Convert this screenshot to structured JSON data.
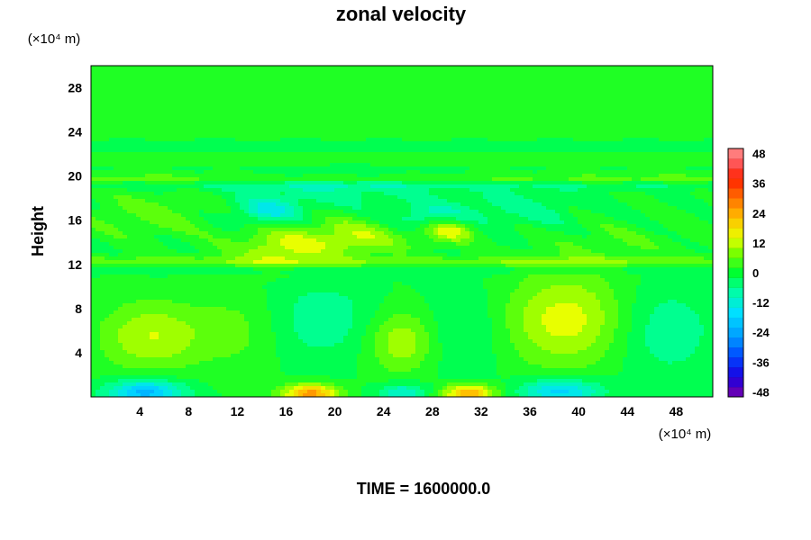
{
  "chart_data": {
    "type": "heatmap",
    "title": "zonal velocity",
    "ylabel": "Height",
    "x_units": "(×10⁴ m)",
    "y_units": "(×10⁴ m)",
    "xlim": [
      0,
      51
    ],
    "ylim": [
      0,
      30
    ],
    "x_ticks": [
      4,
      8,
      12,
      16,
      20,
      24,
      28,
      32,
      36,
      40,
      44,
      48
    ],
    "y_ticks": [
      4,
      8,
      12,
      16,
      20,
      24,
      28
    ],
    "colorbar": {
      "ticks": [
        48,
        36,
        24,
        12,
        0,
        -12,
        -24,
        -36,
        -48
      ],
      "range": [
        -50,
        50
      ],
      "interval": 4,
      "stops": [
        {
          "v": -50,
          "color": "#7b00a8"
        },
        {
          "v": -42,
          "color": "#1a00e0"
        },
        {
          "v": -34,
          "color": "#0044ff"
        },
        {
          "v": -26,
          "color": "#0099ff"
        },
        {
          "v": -16,
          "color": "#00e0ff"
        },
        {
          "v": -7,
          "color": "#00ffa0"
        },
        {
          "v": 0,
          "color": "#00ff30"
        },
        {
          "v": 8,
          "color": "#7aff00"
        },
        {
          "v": 14,
          "color": "#e8ff00"
        },
        {
          "v": 22,
          "color": "#ffc000"
        },
        {
          "v": 30,
          "color": "#ff7000"
        },
        {
          "v": 38,
          "color": "#ff2000"
        },
        {
          "v": 44,
          "color": "#ff5555"
        },
        {
          "v": 50,
          "color": "#ff9090"
        }
      ]
    },
    "field_features": [
      {
        "x": 4.5,
        "y": 0.4,
        "sx": 2.2,
        "sy": 0.8,
        "v": -22
      },
      {
        "x": 18,
        "y": 0.3,
        "sx": 1.6,
        "sy": 0.6,
        "v": 26
      },
      {
        "x": 25.5,
        "y": 0.4,
        "sx": 1.4,
        "sy": 0.6,
        "v": -12
      },
      {
        "x": 31,
        "y": 0.3,
        "sx": 1.5,
        "sy": 0.6,
        "v": 24
      },
      {
        "x": 38.5,
        "y": 0.5,
        "sx": 2.3,
        "sy": 0.8,
        "v": -18
      },
      {
        "x": 5,
        "y": 5.5,
        "sx": 3,
        "sy": 2.2,
        "v": 12
      },
      {
        "x": 12,
        "y": 6,
        "sx": 2.5,
        "sy": 2.5,
        "v": 5
      },
      {
        "x": 19,
        "y": 7,
        "sx": 3,
        "sy": 2.5,
        "v": -7
      },
      {
        "x": 25.5,
        "y": 5,
        "sx": 2,
        "sy": 2,
        "v": 11
      },
      {
        "x": 30.5,
        "y": 6,
        "sx": 2.2,
        "sy": 3,
        "v": -5
      },
      {
        "x": 39,
        "y": 7,
        "sx": 3.5,
        "sy": 3,
        "v": 14
      },
      {
        "x": 47,
        "y": 6,
        "sx": 3,
        "sy": 3,
        "v": -7
      },
      {
        "x": 16,
        "y": 13.5,
        "sx": 3,
        "sy": 1.2,
        "v": 12
      },
      {
        "x": 22,
        "y": 14.5,
        "sx": 3,
        "sy": 1.2,
        "v": 10
      },
      {
        "x": 29.5,
        "y": 15.2,
        "sx": 1.5,
        "sy": 0.8,
        "v": 16
      },
      {
        "x": 14.5,
        "y": 16.8,
        "sx": 2,
        "sy": 0.8,
        "v": -12
      },
      {
        "x": 28,
        "y": 16.2,
        "sx": 2.5,
        "sy": 0.8,
        "v": -10
      },
      {
        "x": 35,
        "y": 17,
        "sx": 4,
        "sy": 1.4,
        "v": -5
      },
      {
        "x": 20,
        "y": 18.8,
        "sx": 6,
        "sy": 1.2,
        "v": -6
      },
      {
        "x": 5,
        "y": 16.5,
        "sx": 4,
        "sy": 1.5,
        "v": 5
      },
      {
        "x": 44,
        "y": 14,
        "sx": 5,
        "sy": 1.5,
        "v": 3
      }
    ],
    "field_bands": [
      {
        "y": 12.2,
        "sy": 0.35,
        "v": 7
      },
      {
        "y": 11.6,
        "sy": 0.3,
        "v": -4
      },
      {
        "y": 19.7,
        "sy": 0.35,
        "v": 6
      },
      {
        "y": 19.2,
        "sy": 0.3,
        "v": -5
      },
      {
        "y": 21.6,
        "sy": 0.35,
        "v": 4
      },
      {
        "y": 22.4,
        "sy": 0.3,
        "v": -3
      },
      {
        "y": 25.5,
        "sy": 0.8,
        "v": 1.5
      }
    ]
  },
  "footer": {
    "time_label": "TIME = 1600000.0"
  }
}
